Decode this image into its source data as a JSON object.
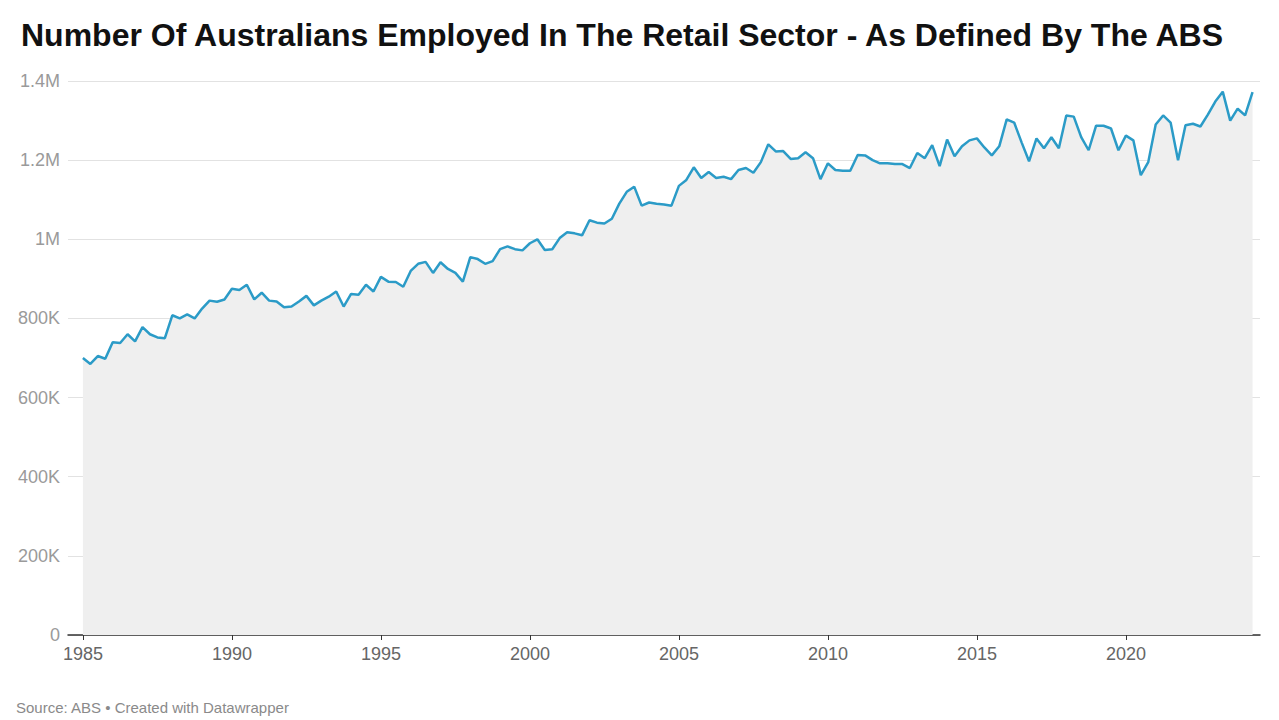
{
  "chart_data": {
    "type": "line",
    "title": "Number Of Australians Employed In The Retail Sector - As Defined By The ABS",
    "source": "Source: ABS • Created with Datawrapper",
    "color": "#2b9bc7",
    "grid": true,
    "xlim": [
      1984.5,
      2024.5
    ],
    "xticks": [
      1985,
      1990,
      1995,
      2000,
      2005,
      2010,
      2015,
      2020
    ],
    "ylim": [
      0,
      1400000
    ],
    "yticks": [
      0,
      {
        "value": 200000,
        "label": "200K"
      },
      {
        "value": 400000,
        "label": "400K"
      },
      {
        "value": 600000,
        "label": "600K"
      },
      {
        "value": 800000,
        "label": "800K"
      },
      {
        "value": 1000000,
        "label": "1M"
      },
      {
        "value": 1200000,
        "label": "1.2M"
      },
      {
        "value": 1400000,
        "label": "1.4M"
      }
    ],
    "x": [
      1985,
      1985.25,
      1985.5,
      1985.75,
      1986,
      1986.25,
      1986.5,
      1986.75,
      1987,
      1987.25,
      1987.5,
      1987.75,
      1988,
      1988.25,
      1988.5,
      1988.75,
      1989,
      1989.25,
      1989.5,
      1989.75,
      1990,
      1990.25,
      1990.5,
      1990.75,
      1991,
      1991.25,
      1991.5,
      1991.75,
      1992,
      1992.25,
      1992.5,
      1992.75,
      1993,
      1993.25,
      1993.5,
      1993.75,
      1994,
      1994.25,
      1994.5,
      1994.75,
      1995,
      1995.25,
      1995.5,
      1995.75,
      1996,
      1996.25,
      1996.5,
      1996.75,
      1997,
      1997.25,
      1997.5,
      1997.75,
      1998,
      1998.25,
      1998.5,
      1998.75,
      1999,
      1999.25,
      1999.5,
      1999.75,
      2000,
      2000.25,
      2000.5,
      2000.75,
      2001,
      2001.25,
      2001.5,
      2001.75,
      2002,
      2002.25,
      2002.5,
      2002.75,
      2003,
      2003.25,
      2003.5,
      2003.75,
      2004,
      2004.25,
      2004.5,
      2004.75,
      2005,
      2005.25,
      2005.5,
      2005.75,
      2006,
      2006.25,
      2006.5,
      2006.75,
      2007,
      2007.25,
      2007.5,
      2007.75,
      2008,
      2008.25,
      2008.5,
      2008.75,
      2009,
      2009.25,
      2009.5,
      2009.75,
      2010,
      2010.25,
      2010.5,
      2010.75,
      2011,
      2011.25,
      2011.5,
      2011.75,
      2012,
      2012.25,
      2012.5,
      2012.75,
      2013,
      2013.25,
      2013.5,
      2013.75,
      2014,
      2014.25,
      2014.5,
      2014.75,
      2015,
      2015.25,
      2015.5,
      2015.75,
      2016,
      2016.25,
      2016.5,
      2016.75,
      2017,
      2017.25,
      2017.5,
      2017.75,
      2018,
      2018.25,
      2018.5,
      2018.75,
      2019,
      2019.25,
      2019.5,
      2019.75,
      2020,
      2020.25,
      2020.5,
      2020.75,
      2021,
      2021.25,
      2021.5,
      2021.75,
      2022,
      2022.25,
      2022.5,
      2022.75,
      2023,
      2023.25,
      2023.5,
      2023.75,
      2024,
      2024.25
    ],
    "values": [
      700000,
      685000,
      705000,
      698000,
      740000,
      738000,
      760000,
      742000,
      778000,
      760000,
      752000,
      750000,
      808000,
      800000,
      810000,
      800000,
      825000,
      845000,
      842000,
      848000,
      875000,
      872000,
      885000,
      848000,
      865000,
      845000,
      843000,
      828000,
      830000,
      843000,
      857000,
      833000,
      845000,
      855000,
      868000,
      830000,
      862000,
      860000,
      885000,
      868000,
      905000,
      893000,
      892000,
      880000,
      920000,
      938000,
      943000,
      915000,
      942000,
      925000,
      915000,
      893000,
      955000,
      950000,
      938000,
      945000,
      975000,
      982000,
      975000,
      972000,
      990000,
      1000000,
      973000,
      975000,
      1003000,
      1018000,
      1015000,
      1010000,
      1048000,
      1042000,
      1040000,
      1052000,
      1090000,
      1120000,
      1133000,
      1085000,
      1093000,
      1090000,
      1088000,
      1085000,
      1135000,
      1150000,
      1182000,
      1155000,
      1170000,
      1155000,
      1158000,
      1152000,
      1175000,
      1180000,
      1168000,
      1195000,
      1240000,
      1222000,
      1223000,
      1203000,
      1205000,
      1220000,
      1205000,
      1152000,
      1192000,
      1175000,
      1173000,
      1173000,
      1213000,
      1212000,
      1200000,
      1192000,
      1192000,
      1190000,
      1190000,
      1180000,
      1218000,
      1205000,
      1238000,
      1185000,
      1252000,
      1210000,
      1235000,
      1250000,
      1255000,
      1232000,
      1212000,
      1235000,
      1303000,
      1295000,
      1245000,
      1197000,
      1255000,
      1230000,
      1258000,
      1230000,
      1313000,
      1310000,
      1258000,
      1225000,
      1287000,
      1287000,
      1280000,
      1225000,
      1262000,
      1250000,
      1162000,
      1195000,
      1290000,
      1313000,
      1295000,
      1200000,
      1288000,
      1292000,
      1285000,
      1315000,
      1348000,
      1373000,
      1300000,
      1330000,
      1313000,
      1372000
    ]
  }
}
